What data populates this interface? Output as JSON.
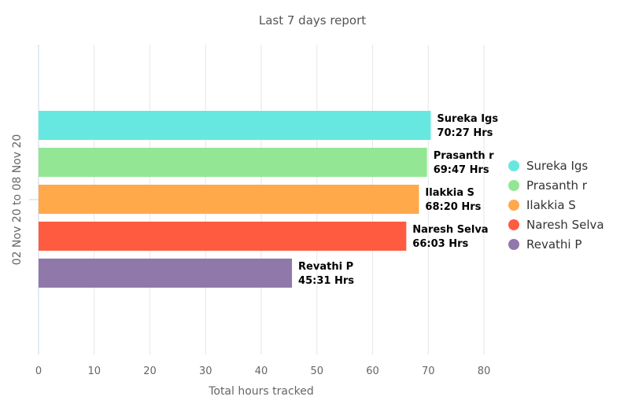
{
  "chart_data": {
    "type": "bar",
    "orientation": "horizontal",
    "title": "Last 7 days report",
    "xlabel": "Total hours tracked",
    "ylabel": "",
    "category_label": "02 Nov 20 to 08 Nov 20",
    "xlim": [
      0,
      80
    ],
    "x_ticks": [
      0,
      10,
      20,
      30,
      40,
      50,
      60,
      70,
      80
    ],
    "grid": "vertical",
    "legend_position": "right",
    "series": [
      {
        "name": "Sureka Igs",
        "value": 70.45,
        "label": "70:27 Hrs",
        "color": "#66e8e0"
      },
      {
        "name": "Prasanth r",
        "value": 69.78,
        "label": "69:47 Hrs",
        "color": "#92e694"
      },
      {
        "name": "Ilakkia S",
        "value": 68.33,
        "label": "68:20 Hrs",
        "color": "#ffa94b"
      },
      {
        "name": "Naresh Selva",
        "value": 66.05,
        "label": "66:03 Hrs",
        "color": "#ff5b40"
      },
      {
        "name": "Revathi P",
        "value": 45.52,
        "label": "45:31 Hrs",
        "color": "#9079aa"
      }
    ]
  }
}
